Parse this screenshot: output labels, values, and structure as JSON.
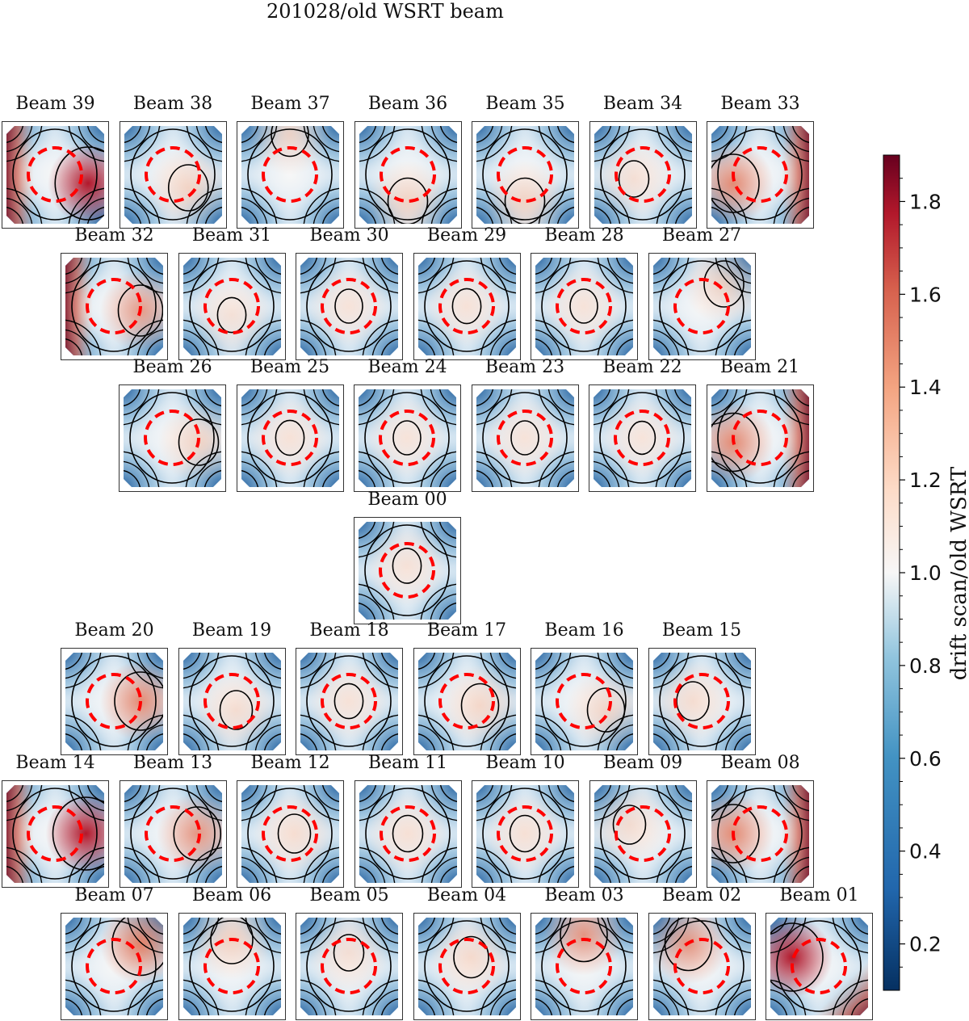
{
  "chart_data": {
    "type": "heatmap",
    "title": "201028/old WSRT beam",
    "colorbar": {
      "label": "drift scan/old WSRT",
      "range": [
        0.1,
        1.9
      ],
      "ticks": [
        "0.2",
        "0.4",
        "0.6",
        "0.8",
        "1.0",
        "1.2",
        "1.4",
        "1.6",
        "1.8"
      ],
      "colormap": "RdBu_r",
      "colors": {
        "low": "#053061",
        "mid": "#f7f7f7",
        "high": "#67001f"
      }
    },
    "overlay": {
      "circle_color": "#ff0000",
      "circle_style": "dashed",
      "contour_color": "#000000"
    },
    "rows": [
      [
        "Beam 39",
        "Beam 38",
        "Beam 37",
        "Beam 36",
        "Beam 35",
        "Beam 34",
        "Beam 33"
      ],
      [
        "Beam 32",
        "Beam 31",
        "Beam 30",
        "Beam 29",
        "Beam 28",
        "Beam 27"
      ],
      [
        "Beam 26",
        "Beam 25",
        "Beam 24",
        "Beam 23",
        "Beam 22",
        "Beam 21"
      ],
      [
        "Beam 00"
      ],
      [
        "Beam 20",
        "Beam 19",
        "Beam 18",
        "Beam 17",
        "Beam 16",
        "Beam 15"
      ],
      [
        "Beam 14",
        "Beam 13",
        "Beam 12",
        "Beam 11",
        "Beam 10",
        "Beam 09",
        "Beam 08"
      ],
      [
        "Beam 07",
        "Beam 06",
        "Beam 05",
        "Beam 04",
        "Beam 03",
        "Beam 02",
        "Beam 01"
      ]
    ]
  }
}
